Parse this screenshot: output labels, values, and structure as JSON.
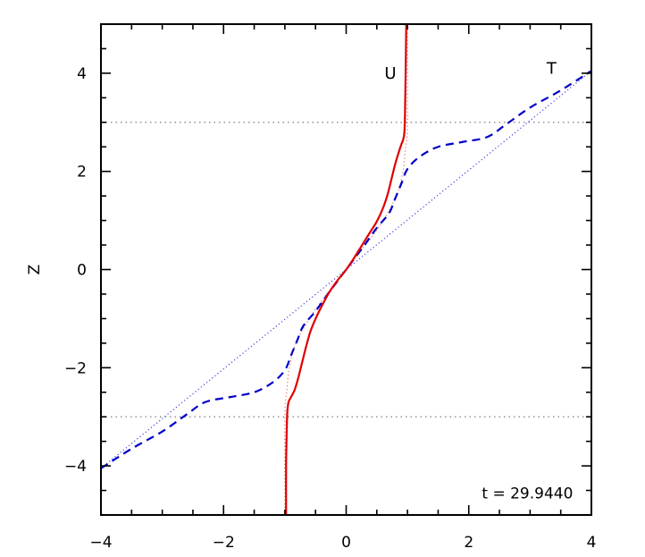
{
  "chart_data": {
    "type": "line",
    "title": "",
    "xlabel": "",
    "ylabel": "Z",
    "xlim": [
      -4,
      4
    ],
    "ylim": [
      -5,
      5
    ],
    "x_ticks": [
      -4,
      -2,
      0,
      2,
      4
    ],
    "y_ticks": [
      -4,
      -2,
      0,
      2,
      4
    ],
    "x_tick_labels": [
      "−4",
      "−2",
      "0",
      "2",
      "4"
    ],
    "y_tick_labels": [
      "−4",
      "−2",
      "0",
      "2",
      "4"
    ],
    "grid": false,
    "annotation": "t = 29.9440",
    "reference_lines": [
      {
        "style": "dotted",
        "color": "#888888",
        "z": 3
      },
      {
        "style": "dotted",
        "color": "#888888",
        "z": -3
      }
    ],
    "series": [
      {
        "name": "U",
        "color": "#e00000",
        "style": "solid",
        "points": [
          [
            -0.98,
            -5.0
          ],
          [
            -0.98,
            -4.0
          ],
          [
            -0.97,
            -3.3
          ],
          [
            -0.96,
            -2.9
          ],
          [
            -0.94,
            -2.7
          ],
          [
            -0.9,
            -2.6
          ],
          [
            -0.84,
            -2.45
          ],
          [
            -0.78,
            -2.2
          ],
          [
            -0.72,
            -1.9
          ],
          [
            -0.66,
            -1.6
          ],
          [
            -0.58,
            -1.25
          ],
          [
            -0.48,
            -0.95
          ],
          [
            -0.38,
            -0.7
          ],
          [
            -0.27,
            -0.45
          ],
          [
            -0.14,
            -0.22
          ],
          [
            0.0,
            0.0
          ],
          [
            0.12,
            0.22
          ],
          [
            0.25,
            0.48
          ],
          [
            0.38,
            0.74
          ],
          [
            0.5,
            0.98
          ],
          [
            0.6,
            1.25
          ],
          [
            0.68,
            1.55
          ],
          [
            0.74,
            1.85
          ],
          [
            0.8,
            2.15
          ],
          [
            0.86,
            2.4
          ],
          [
            0.9,
            2.55
          ],
          [
            0.93,
            2.65
          ],
          [
            0.95,
            2.8
          ],
          [
            0.96,
            3.2
          ],
          [
            0.97,
            4.0
          ],
          [
            0.98,
            5.0
          ]
        ]
      },
      {
        "name": "T",
        "color": "#0000c8",
        "style": "dashed",
        "points": [
          [
            -4.0,
            -4.05
          ],
          [
            -3.5,
            -3.65
          ],
          [
            -3.0,
            -3.3
          ],
          [
            -2.6,
            -2.95
          ],
          [
            -2.3,
            -2.7
          ],
          [
            -1.9,
            -2.6
          ],
          [
            -1.5,
            -2.5
          ],
          [
            -1.2,
            -2.3
          ],
          [
            -1.0,
            -2.05
          ],
          [
            -0.9,
            -1.75
          ],
          [
            -0.8,
            -1.45
          ],
          [
            -0.7,
            -1.15
          ],
          [
            -0.5,
            -0.85
          ],
          [
            -0.3,
            -0.5
          ],
          [
            -0.15,
            -0.25
          ],
          [
            0.0,
            0.0
          ],
          [
            0.15,
            0.25
          ],
          [
            0.3,
            0.5
          ],
          [
            0.5,
            0.85
          ],
          [
            0.7,
            1.15
          ],
          [
            0.8,
            1.45
          ],
          [
            0.9,
            1.75
          ],
          [
            1.0,
            2.05
          ],
          [
            1.2,
            2.3
          ],
          [
            1.5,
            2.5
          ],
          [
            1.9,
            2.6
          ],
          [
            2.3,
            2.7
          ],
          [
            2.6,
            2.95
          ],
          [
            3.0,
            3.3
          ],
          [
            3.5,
            3.65
          ],
          [
            4.0,
            4.05
          ]
        ]
      },
      {
        "name": "",
        "color": "#e07070",
        "style": "dotted",
        "points": [
          [
            -1.0,
            -5.0
          ],
          [
            -1.0,
            -3.0
          ],
          [
            -0.97,
            -2.5
          ],
          [
            -0.92,
            -1.95
          ],
          [
            -0.8,
            -1.45
          ],
          [
            -0.55,
            -0.9
          ],
          [
            -0.28,
            -0.45
          ],
          [
            0.0,
            0.0
          ],
          [
            0.28,
            0.45
          ],
          [
            0.55,
            0.9
          ],
          [
            0.8,
            1.45
          ],
          [
            0.92,
            1.95
          ],
          [
            0.97,
            2.5
          ],
          [
            1.0,
            3.0
          ],
          [
            1.0,
            5.0
          ]
        ]
      },
      {
        "name": "",
        "color": "#4040e0",
        "style": "dotted",
        "points": [
          [
            -4.0,
            -4.05
          ],
          [
            4.0,
            4.05
          ]
        ]
      }
    ]
  }
}
